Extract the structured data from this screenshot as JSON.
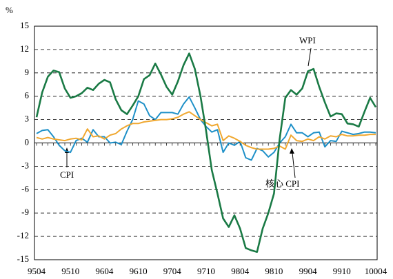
{
  "chart_data": {
    "type": "line",
    "unit_label": "%",
    "categories": [
      "9504",
      null,
      null,
      null,
      null,
      null,
      "9510",
      null,
      null,
      null,
      null,
      null,
      "9604",
      null,
      null,
      null,
      null,
      null,
      "9610",
      null,
      null,
      null,
      null,
      null,
      "9704",
      null,
      null,
      null,
      null,
      null,
      "9710",
      null,
      null,
      null,
      null,
      null,
      "9804",
      null,
      null,
      null,
      null,
      null,
      "9810",
      null,
      null,
      null,
      null,
      null,
      "9904",
      null,
      null,
      null,
      null,
      null,
      "9910",
      null,
      null,
      null,
      null,
      null,
      "10004"
    ],
    "series": [
      {
        "name": "WPI",
        "color": "#1a7a45",
        "values": [
          3.3,
          6.5,
          8.5,
          9.3,
          9.1,
          7.0,
          5.8,
          6.0,
          6.4,
          7.1,
          6.8,
          7.6,
          8.1,
          7.8,
          5.6,
          4.2,
          3.7,
          4.8,
          6.0,
          8.2,
          8.7,
          10.2,
          8.8,
          7.2,
          6.2,
          7.9,
          10.0,
          11.5,
          9.5,
          6.0,
          1.5,
          -3.5,
          -6.5,
          -9.7,
          -10.8,
          -9.3,
          -11.0,
          -13.5,
          -13.8,
          -14.0,
          -11.0,
          -9.0,
          -6.5,
          0.5,
          5.8,
          6.8,
          6.2,
          7.0,
          9.2,
          9.5,
          7.2,
          5.2,
          3.4,
          3.8,
          3.7,
          2.5,
          2.4,
          2.1,
          4.0,
          5.8,
          4.6
        ]
      },
      {
        "name": "CPI",
        "color": "#1e90c8",
        "values": [
          1.2,
          1.6,
          1.7,
          0.8,
          -0.3,
          -1.0,
          -1.2,
          0.3,
          0.6,
          0.1,
          1.7,
          0.8,
          0.8,
          0.0,
          0.1,
          -0.2,
          1.5,
          3.0,
          5.4,
          5.0,
          3.5,
          3.0,
          3.9,
          3.9,
          3.9,
          3.7,
          5.0,
          5.9,
          4.5,
          3.0,
          2.1,
          1.4,
          1.7,
          -1.2,
          0.0,
          -0.3,
          0.2,
          -1.9,
          -2.2,
          -0.7,
          -1.0,
          -1.8,
          -1.2,
          0.0,
          0.8,
          2.4,
          1.3,
          1.3,
          0.8,
          1.3,
          1.4,
          -0.5,
          0.3,
          0.2,
          1.5,
          1.3,
          1.1,
          1.2,
          1.4,
          1.4,
          1.3
        ]
      },
      {
        "name": "核心 CPI",
        "color": "#f0a830",
        "values": [
          0.7,
          0.5,
          0.7,
          0.5,
          0.4,
          0.3,
          0.5,
          0.6,
          0.4,
          1.8,
          0.8,
          0.9,
          0.5,
          1.0,
          1.2,
          1.8,
          2.2,
          2.5,
          2.5,
          2.7,
          2.8,
          2.9,
          3.0,
          3.0,
          3.1,
          3.3,
          3.7,
          4.0,
          3.5,
          3.0,
          2.6,
          2.2,
          2.4,
          0.3,
          0.9,
          0.6,
          0.2,
          -0.3,
          -0.6,
          -0.8,
          -0.8,
          -0.8,
          -0.7,
          -0.4,
          -0.8,
          1.0,
          0.3,
          0.2,
          0.5,
          0.3,
          0.8,
          0.5,
          0.9,
          0.8,
          1.1,
          0.9,
          0.9,
          1.0,
          1.0,
          1.1,
          1.1
        ]
      }
    ],
    "ylim": [
      -15,
      15
    ],
    "yticks": [
      15,
      12,
      9,
      6,
      3,
      0,
      -3,
      -6,
      -9,
      -12,
      -15
    ],
    "grid": true
  }
}
